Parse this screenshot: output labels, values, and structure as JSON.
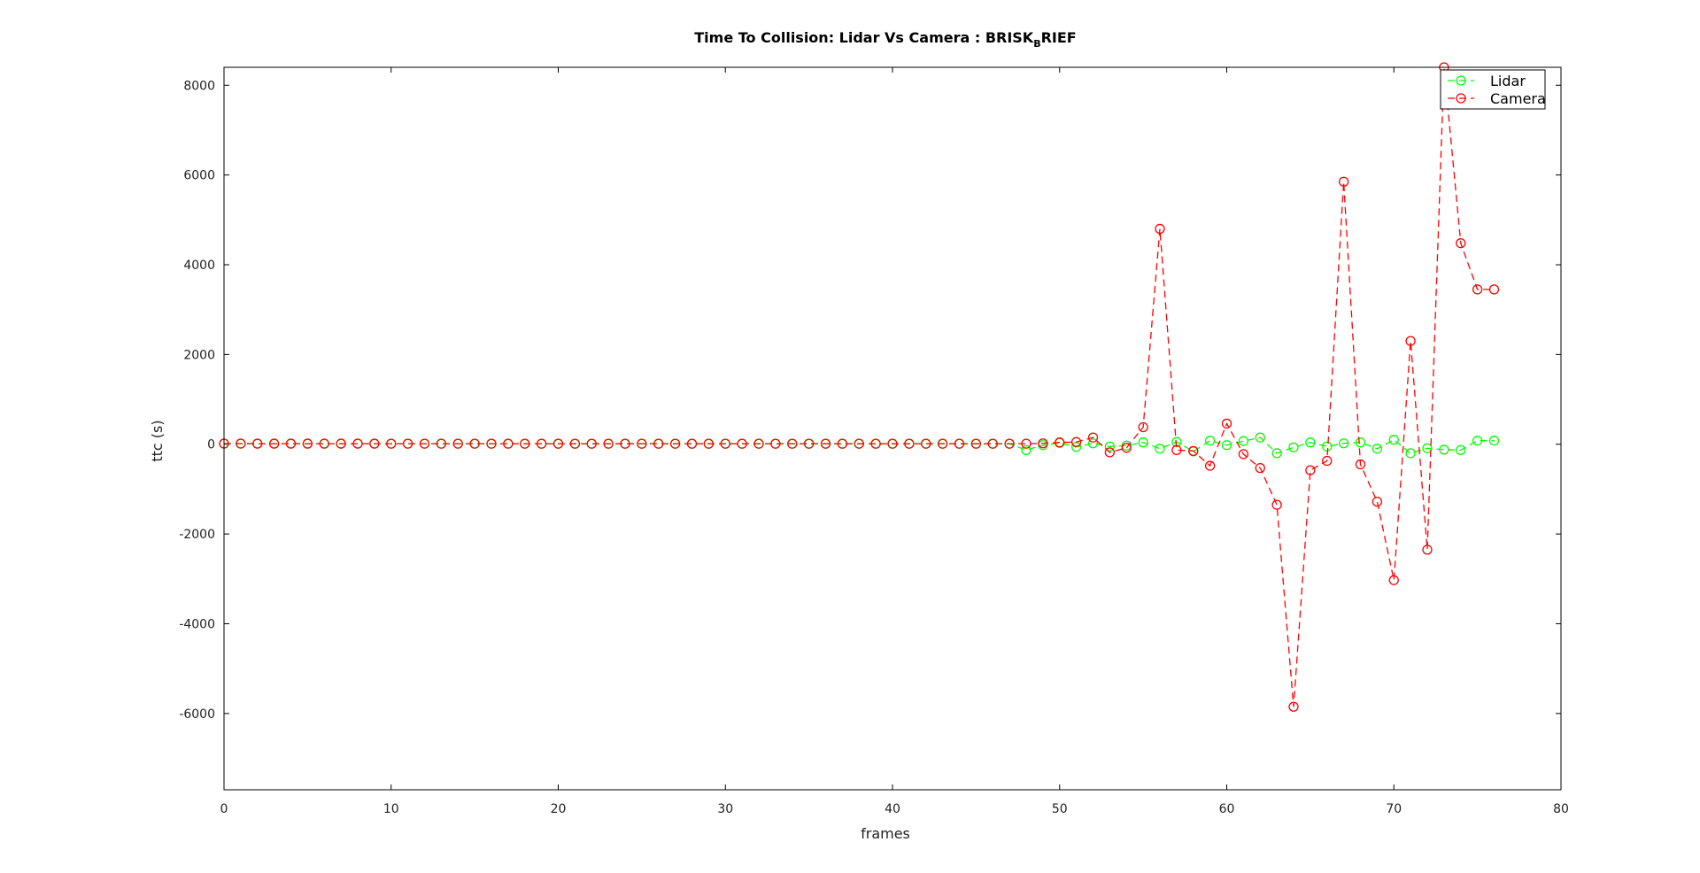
{
  "chart_data": {
    "type": "line",
    "title": "Time To Collision: Lidar Vs Camera : BRISK",
    "title_subscript": "B",
    "title_tail": "RIEF",
    "xlabel": "frames",
    "ylabel": "ttc (s)",
    "xlim": [
      0,
      80
    ],
    "ylim": [
      -7700,
      8400
    ],
    "xticks": [
      0,
      10,
      20,
      30,
      40,
      50,
      60,
      70,
      80
    ],
    "yticks": [
      -6000,
      -4000,
      -2000,
      0,
      2000,
      4000,
      6000,
      8000
    ],
    "legend_position": "top-right",
    "series": [
      {
        "name": "Lidar",
        "color": "#00ff00",
        "x": [
          0,
          1,
          2,
          3,
          4,
          5,
          6,
          7,
          8,
          9,
          10,
          11,
          12,
          13,
          14,
          15,
          16,
          17,
          18,
          19,
          20,
          21,
          22,
          23,
          24,
          25,
          26,
          27,
          28,
          29,
          30,
          31,
          32,
          33,
          34,
          35,
          36,
          37,
          38,
          39,
          40,
          41,
          42,
          43,
          44,
          45,
          46,
          47,
          48,
          49,
          50,
          51,
          52,
          53,
          54,
          55,
          56,
          57,
          58,
          59,
          60,
          61,
          62,
          63,
          64,
          65,
          66,
          67,
          68,
          69,
          70,
          71,
          72,
          73,
          74,
          75,
          76
        ],
        "values": [
          12,
          13,
          12,
          13,
          14,
          13,
          12,
          13,
          12,
          12,
          12,
          12,
          12,
          11,
          12,
          11,
          11,
          11,
          10,
          10,
          10,
          10,
          9,
          9,
          9,
          9,
          9,
          9,
          9,
          9,
          10,
          9,
          9,
          9,
          9,
          9,
          9,
          9,
          9,
          9,
          9,
          9,
          9,
          9,
          9,
          9,
          9,
          9,
          -130,
          -20,
          30,
          -60,
          20,
          -50,
          -30,
          40,
          -100,
          50,
          -160,
          80,
          -20,
          70,
          150,
          -200,
          -70,
          40,
          -50,
          20,
          40,
          -100,
          100,
          -200,
          -90,
          -120,
          -130,
          80,
          80
        ]
      },
      {
        "name": "Camera",
        "color": "#ff0000",
        "x": [
          0,
          1,
          2,
          3,
          4,
          5,
          6,
          7,
          8,
          9,
          10,
          11,
          12,
          13,
          14,
          15,
          16,
          17,
          18,
          19,
          20,
          21,
          22,
          23,
          24,
          25,
          26,
          27,
          28,
          29,
          30,
          31,
          32,
          33,
          34,
          35,
          36,
          37,
          38,
          39,
          40,
          41,
          42,
          43,
          44,
          45,
          46,
          47,
          48,
          49,
          50,
          51,
          52,
          53,
          54,
          55,
          56,
          57,
          58,
          59,
          60,
          61,
          62,
          63,
          64,
          65,
          66,
          67,
          68,
          69,
          70,
          71,
          72,
          73,
          74,
          75,
          76
        ],
        "values": [
          14,
          14,
          13,
          13,
          13,
          13,
          13,
          13,
          13,
          13,
          12,
          12,
          12,
          12,
          12,
          12,
          12,
          12,
          12,
          12,
          12,
          12,
          12,
          12,
          12,
          12,
          12,
          12,
          12,
          12,
          12,
          12,
          12,
          12,
          12,
          12,
          12,
          12,
          12,
          12,
          12,
          12,
          12,
          12,
          12,
          12,
          12,
          12,
          12,
          20,
          40,
          50,
          150,
          -180,
          -80,
          380,
          4800,
          -130,
          -150,
          -480,
          460,
          -220,
          -530,
          -1350,
          -5850,
          -580,
          -370,
          5850,
          -450,
          -1280,
          -3030,
          2300,
          -2350,
          8400,
          4480,
          3450,
          3450
        ]
      }
    ]
  }
}
